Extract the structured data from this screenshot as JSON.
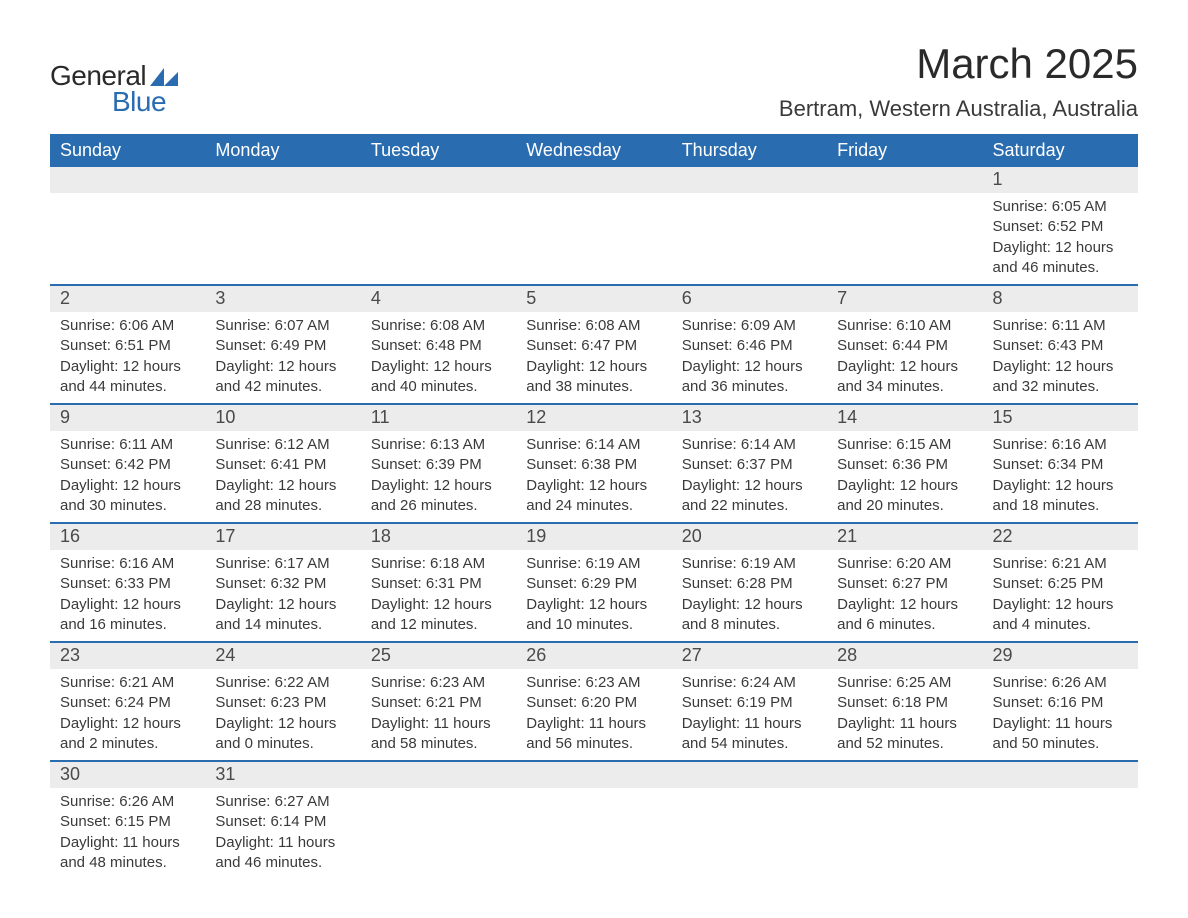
{
  "logo": {
    "text1": "General",
    "text2": "Blue",
    "shape_color": "#2a6cb0"
  },
  "title": "March 2025",
  "location": "Bertram, Western Australia, Australia",
  "colors": {
    "header_bg": "#2a6cb0",
    "header_text": "#ffffff",
    "daynum_bg": "#ececec",
    "row_border": "#2a6cb0",
    "body_text": "#3a3a3a"
  },
  "weekdays": [
    "Sunday",
    "Monday",
    "Tuesday",
    "Wednesday",
    "Thursday",
    "Friday",
    "Saturday"
  ],
  "weeks": [
    [
      null,
      null,
      null,
      null,
      null,
      null,
      {
        "n": "1",
        "sr": "Sunrise: 6:05 AM",
        "ss": "Sunset: 6:52 PM",
        "d1": "Daylight: 12 hours",
        "d2": "and 46 minutes."
      }
    ],
    [
      {
        "n": "2",
        "sr": "Sunrise: 6:06 AM",
        "ss": "Sunset: 6:51 PM",
        "d1": "Daylight: 12 hours",
        "d2": "and 44 minutes."
      },
      {
        "n": "3",
        "sr": "Sunrise: 6:07 AM",
        "ss": "Sunset: 6:49 PM",
        "d1": "Daylight: 12 hours",
        "d2": "and 42 minutes."
      },
      {
        "n": "4",
        "sr": "Sunrise: 6:08 AM",
        "ss": "Sunset: 6:48 PM",
        "d1": "Daylight: 12 hours",
        "d2": "and 40 minutes."
      },
      {
        "n": "5",
        "sr": "Sunrise: 6:08 AM",
        "ss": "Sunset: 6:47 PM",
        "d1": "Daylight: 12 hours",
        "d2": "and 38 minutes."
      },
      {
        "n": "6",
        "sr": "Sunrise: 6:09 AM",
        "ss": "Sunset: 6:46 PM",
        "d1": "Daylight: 12 hours",
        "d2": "and 36 minutes."
      },
      {
        "n": "7",
        "sr": "Sunrise: 6:10 AM",
        "ss": "Sunset: 6:44 PM",
        "d1": "Daylight: 12 hours",
        "d2": "and 34 minutes."
      },
      {
        "n": "8",
        "sr": "Sunrise: 6:11 AM",
        "ss": "Sunset: 6:43 PM",
        "d1": "Daylight: 12 hours",
        "d2": "and 32 minutes."
      }
    ],
    [
      {
        "n": "9",
        "sr": "Sunrise: 6:11 AM",
        "ss": "Sunset: 6:42 PM",
        "d1": "Daylight: 12 hours",
        "d2": "and 30 minutes."
      },
      {
        "n": "10",
        "sr": "Sunrise: 6:12 AM",
        "ss": "Sunset: 6:41 PM",
        "d1": "Daylight: 12 hours",
        "d2": "and 28 minutes."
      },
      {
        "n": "11",
        "sr": "Sunrise: 6:13 AM",
        "ss": "Sunset: 6:39 PM",
        "d1": "Daylight: 12 hours",
        "d2": "and 26 minutes."
      },
      {
        "n": "12",
        "sr": "Sunrise: 6:14 AM",
        "ss": "Sunset: 6:38 PM",
        "d1": "Daylight: 12 hours",
        "d2": "and 24 minutes."
      },
      {
        "n": "13",
        "sr": "Sunrise: 6:14 AM",
        "ss": "Sunset: 6:37 PM",
        "d1": "Daylight: 12 hours",
        "d2": "and 22 minutes."
      },
      {
        "n": "14",
        "sr": "Sunrise: 6:15 AM",
        "ss": "Sunset: 6:36 PM",
        "d1": "Daylight: 12 hours",
        "d2": "and 20 minutes."
      },
      {
        "n": "15",
        "sr": "Sunrise: 6:16 AM",
        "ss": "Sunset: 6:34 PM",
        "d1": "Daylight: 12 hours",
        "d2": "and 18 minutes."
      }
    ],
    [
      {
        "n": "16",
        "sr": "Sunrise: 6:16 AM",
        "ss": "Sunset: 6:33 PM",
        "d1": "Daylight: 12 hours",
        "d2": "and 16 minutes."
      },
      {
        "n": "17",
        "sr": "Sunrise: 6:17 AM",
        "ss": "Sunset: 6:32 PM",
        "d1": "Daylight: 12 hours",
        "d2": "and 14 minutes."
      },
      {
        "n": "18",
        "sr": "Sunrise: 6:18 AM",
        "ss": "Sunset: 6:31 PM",
        "d1": "Daylight: 12 hours",
        "d2": "and 12 minutes."
      },
      {
        "n": "19",
        "sr": "Sunrise: 6:19 AM",
        "ss": "Sunset: 6:29 PM",
        "d1": "Daylight: 12 hours",
        "d2": "and 10 minutes."
      },
      {
        "n": "20",
        "sr": "Sunrise: 6:19 AM",
        "ss": "Sunset: 6:28 PM",
        "d1": "Daylight: 12 hours",
        "d2": "and 8 minutes."
      },
      {
        "n": "21",
        "sr": "Sunrise: 6:20 AM",
        "ss": "Sunset: 6:27 PM",
        "d1": "Daylight: 12 hours",
        "d2": "and 6 minutes."
      },
      {
        "n": "22",
        "sr": "Sunrise: 6:21 AM",
        "ss": "Sunset: 6:25 PM",
        "d1": "Daylight: 12 hours",
        "d2": "and 4 minutes."
      }
    ],
    [
      {
        "n": "23",
        "sr": "Sunrise: 6:21 AM",
        "ss": "Sunset: 6:24 PM",
        "d1": "Daylight: 12 hours",
        "d2": "and 2 minutes."
      },
      {
        "n": "24",
        "sr": "Sunrise: 6:22 AM",
        "ss": "Sunset: 6:23 PM",
        "d1": "Daylight: 12 hours",
        "d2": "and 0 minutes."
      },
      {
        "n": "25",
        "sr": "Sunrise: 6:23 AM",
        "ss": "Sunset: 6:21 PM",
        "d1": "Daylight: 11 hours",
        "d2": "and 58 minutes."
      },
      {
        "n": "26",
        "sr": "Sunrise: 6:23 AM",
        "ss": "Sunset: 6:20 PM",
        "d1": "Daylight: 11 hours",
        "d2": "and 56 minutes."
      },
      {
        "n": "27",
        "sr": "Sunrise: 6:24 AM",
        "ss": "Sunset: 6:19 PM",
        "d1": "Daylight: 11 hours",
        "d2": "and 54 minutes."
      },
      {
        "n": "28",
        "sr": "Sunrise: 6:25 AM",
        "ss": "Sunset: 6:18 PM",
        "d1": "Daylight: 11 hours",
        "d2": "and 52 minutes."
      },
      {
        "n": "29",
        "sr": "Sunrise: 6:26 AM",
        "ss": "Sunset: 6:16 PM",
        "d1": "Daylight: 11 hours",
        "d2": "and 50 minutes."
      }
    ],
    [
      {
        "n": "30",
        "sr": "Sunrise: 6:26 AM",
        "ss": "Sunset: 6:15 PM",
        "d1": "Daylight: 11 hours",
        "d2": "and 48 minutes."
      },
      {
        "n": "31",
        "sr": "Sunrise: 6:27 AM",
        "ss": "Sunset: 6:14 PM",
        "d1": "Daylight: 11 hours",
        "d2": "and 46 minutes."
      },
      null,
      null,
      null,
      null,
      null
    ]
  ]
}
